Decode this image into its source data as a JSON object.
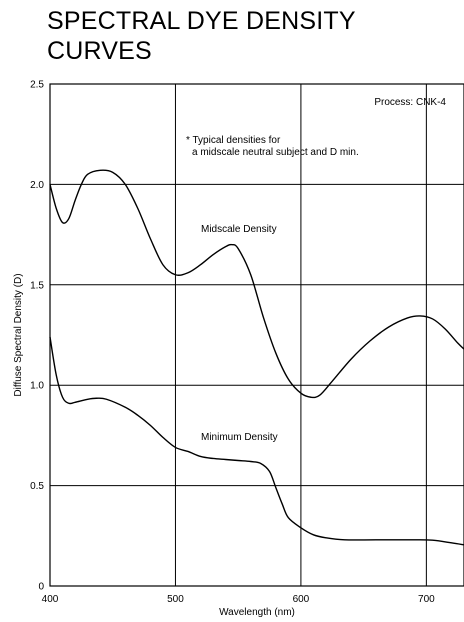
{
  "chart_data": {
    "type": "line",
    "title": "SPECTRAL DYE DENSITY\nCURVES",
    "xlabel": "Wavelength (nm)",
    "ylabel": "Diffuse Spectral Density (D)",
    "xlim": [
      400,
      730
    ],
    "ylim": [
      0,
      2.5
    ],
    "x_ticks": [
      400,
      500,
      600,
      700
    ],
    "y_ticks": [
      "0",
      "0.5",
      "1.0",
      "1.5",
      "2.0",
      "2.5"
    ],
    "grid": true,
    "annotations": {
      "process": "Process: CNK-4",
      "note_line1": "* Typical densities for",
      "note_line2": "a midscale neutral subject and D min.",
      "midscale_label": "Midscale Density",
      "minimum_label": "Minimum Density"
    },
    "series": [
      {
        "name": "Midscale Density",
        "points": [
          [
            400,
            2.0
          ],
          [
            405,
            1.88
          ],
          [
            410,
            1.81
          ],
          [
            415,
            1.83
          ],
          [
            420,
            1.92
          ],
          [
            425,
            2.0
          ],
          [
            430,
            2.05
          ],
          [
            440,
            2.07
          ],
          [
            450,
            2.06
          ],
          [
            460,
            2.0
          ],
          [
            470,
            1.88
          ],
          [
            480,
            1.73
          ],
          [
            490,
            1.6
          ],
          [
            500,
            1.55
          ],
          [
            510,
            1.56
          ],
          [
            520,
            1.6
          ],
          [
            530,
            1.65
          ],
          [
            540,
            1.69
          ],
          [
            545,
            1.7
          ],
          [
            550,
            1.68
          ],
          [
            560,
            1.55
          ],
          [
            570,
            1.34
          ],
          [
            580,
            1.16
          ],
          [
            590,
            1.03
          ],
          [
            600,
            0.96
          ],
          [
            608,
            0.94
          ],
          [
            615,
            0.95
          ],
          [
            625,
            1.02
          ],
          [
            640,
            1.13
          ],
          [
            655,
            1.22
          ],
          [
            670,
            1.29
          ],
          [
            685,
            1.335
          ],
          [
            695,
            1.345
          ],
          [
            705,
            1.33
          ],
          [
            715,
            1.28
          ],
          [
            725,
            1.21
          ],
          [
            730,
            1.18
          ]
        ]
      },
      {
        "name": "Minimum Density",
        "points": [
          [
            400,
            1.24
          ],
          [
            405,
            1.05
          ],
          [
            410,
            0.94
          ],
          [
            415,
            0.91
          ],
          [
            420,
            0.915
          ],
          [
            430,
            0.93
          ],
          [
            437,
            0.935
          ],
          [
            445,
            0.93
          ],
          [
            460,
            0.89
          ],
          [
            470,
            0.85
          ],
          [
            480,
            0.8
          ],
          [
            490,
            0.74
          ],
          [
            500,
            0.69
          ],
          [
            510,
            0.67
          ],
          [
            520,
            0.645
          ],
          [
            530,
            0.635
          ],
          [
            540,
            0.63
          ],
          [
            550,
            0.625
          ],
          [
            560,
            0.62
          ],
          [
            568,
            0.61
          ],
          [
            575,
            0.57
          ],
          [
            580,
            0.49
          ],
          [
            585,
            0.41
          ],
          [
            590,
            0.34
          ],
          [
            600,
            0.29
          ],
          [
            610,
            0.255
          ],
          [
            620,
            0.24
          ],
          [
            635,
            0.23
          ],
          [
            660,
            0.23
          ],
          [
            690,
            0.23
          ],
          [
            705,
            0.228
          ],
          [
            720,
            0.215
          ],
          [
            730,
            0.205
          ]
        ]
      }
    ]
  }
}
